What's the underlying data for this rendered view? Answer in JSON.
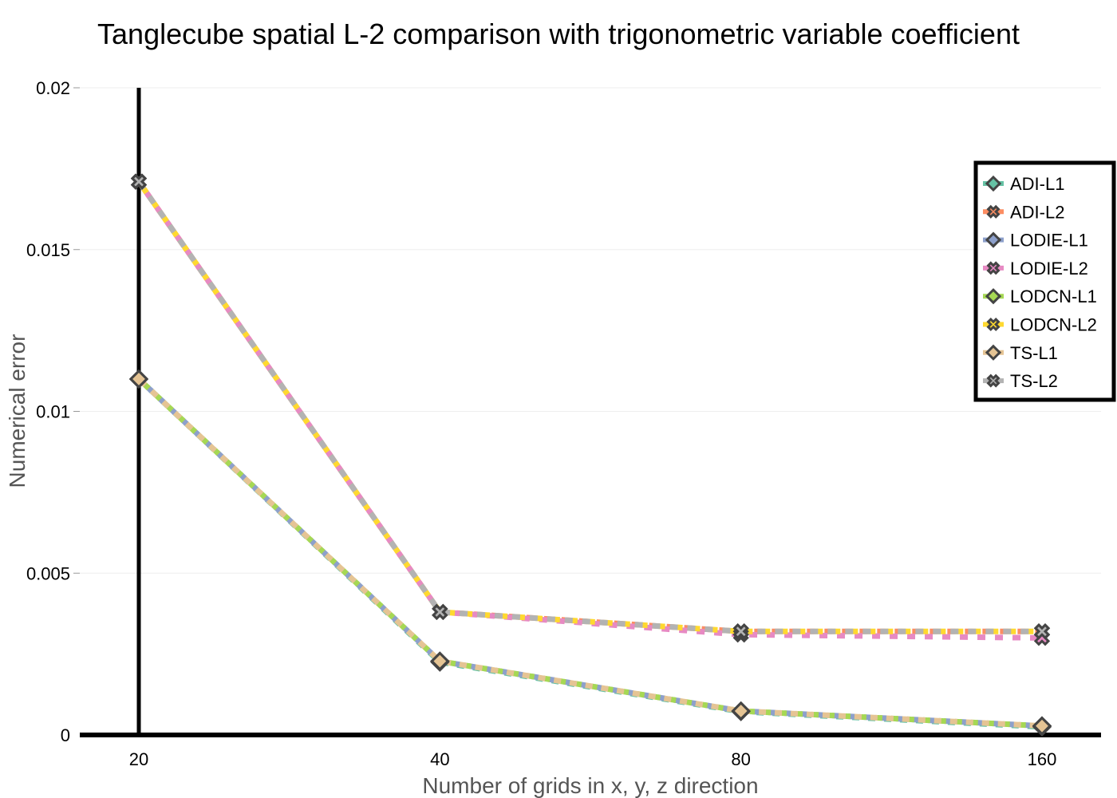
{
  "chart_data": {
    "type": "line",
    "title": "Tanglecube spatial L-2 comparison with trigonometric variable coefficient",
    "xlabel": "Number of grids in x, y, z direction",
    "ylabel": "Numerical error",
    "x": [
      20,
      40,
      80,
      160
    ],
    "x_scale": "log",
    "x_ticks": [
      "20",
      "40",
      "80",
      "160"
    ],
    "ylim": [
      0,
      0.02
    ],
    "y_ticks": [
      {
        "value": 0,
        "label": "0"
      },
      {
        "value": 0.005,
        "label": "0.005"
      },
      {
        "value": 0.01,
        "label": "0.01"
      },
      {
        "value": 0.015,
        "label": "0.015"
      },
      {
        "value": 0.02,
        "label": "0.02"
      }
    ],
    "grid": true,
    "legend_position": "right",
    "series": [
      {
        "name": "ADI-L1",
        "color": "#66c2a5",
        "marker": "diamond",
        "values": [
          0.011,
          0.00225,
          0.00072,
          0.00025
        ]
      },
      {
        "name": "ADI-L2",
        "color": "#fc8d62",
        "marker": "x",
        "values": [
          0.0171,
          0.0038,
          0.0032,
          0.0032
        ]
      },
      {
        "name": "LODIE-L1",
        "color": "#8da0cb",
        "marker": "diamond",
        "values": [
          0.011,
          0.00228,
          0.00074,
          0.00028
        ]
      },
      {
        "name": "LODIE-L2",
        "color": "#e78ac3",
        "marker": "x",
        "values": [
          0.0171,
          0.0038,
          0.0031,
          0.003
        ]
      },
      {
        "name": "LODCN-L1",
        "color": "#a6d854",
        "marker": "diamond",
        "values": [
          0.011,
          0.00228,
          0.00074,
          0.00028
        ]
      },
      {
        "name": "LODCN-L2",
        "color": "#ffd92f",
        "marker": "x",
        "values": [
          0.0171,
          0.0038,
          0.0032,
          0.0032
        ]
      },
      {
        "name": "TS-L1",
        "color": "#e5c494",
        "marker": "diamond",
        "values": [
          0.011,
          0.00228,
          0.00074,
          0.00028
        ]
      },
      {
        "name": "TS-L2",
        "color": "#b3b3b3",
        "marker": "x",
        "values": [
          0.0171,
          0.0038,
          0.0032,
          0.0032
        ]
      }
    ]
  }
}
